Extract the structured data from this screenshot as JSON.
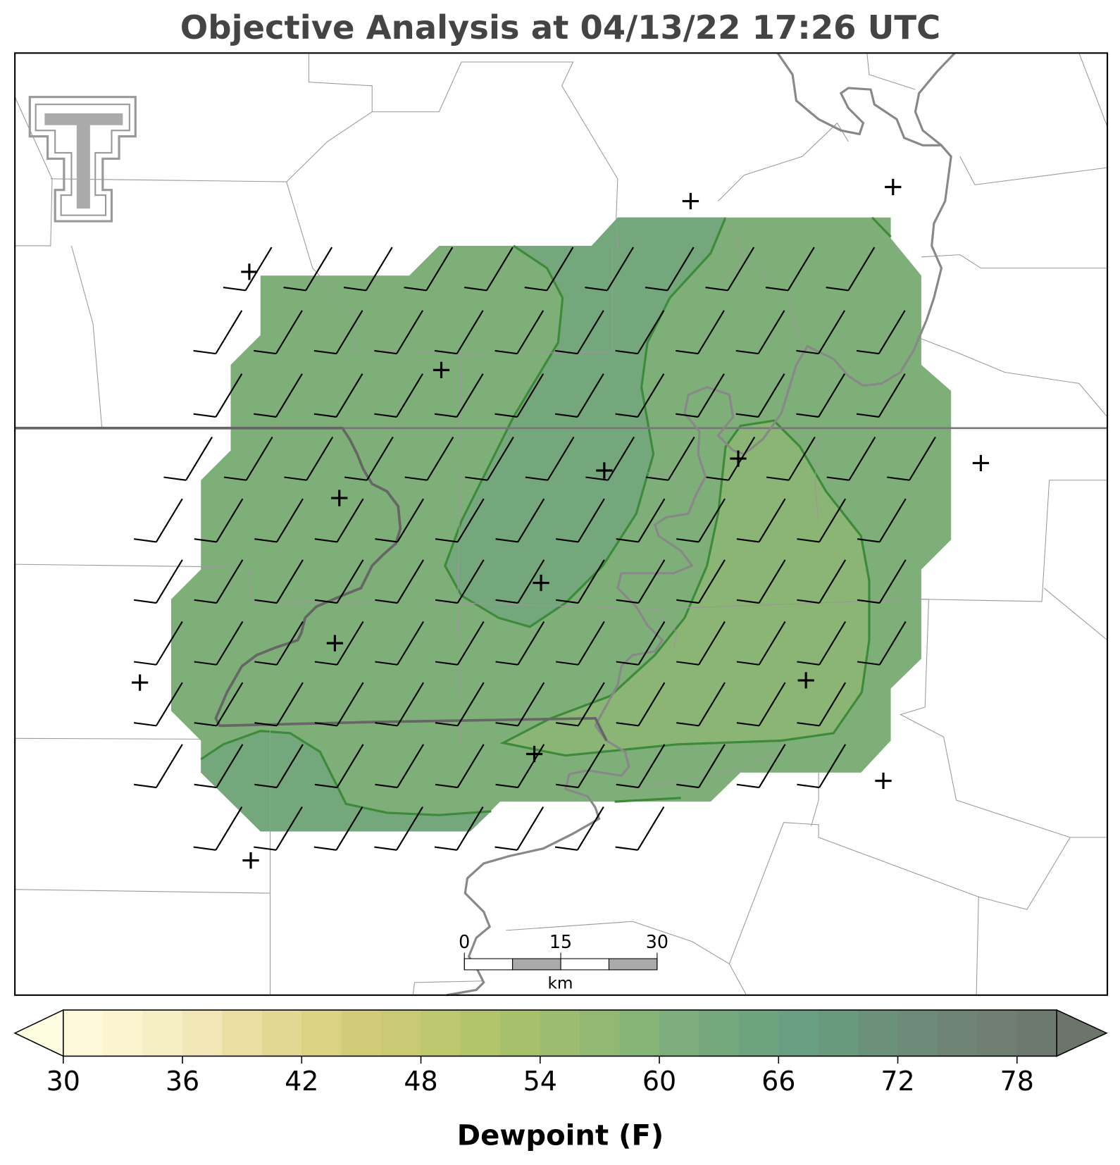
{
  "title": "Objective Analysis at 04/13/22 17:26 UTC",
  "scale_bar": {
    "lim": [
      0,
      30
    ],
    "ticks": [
      0,
      15,
      30
    ],
    "unit": "km"
  },
  "colorbar": {
    "label": "Dewpoint (F)",
    "lim": [
      30,
      80
    ],
    "ticks": [
      30,
      36,
      42,
      48,
      54,
      60,
      66,
      72,
      78
    ],
    "under_color": "#fefce0",
    "over_color": "#6c7569",
    "colors": [
      "#fdf9d8",
      "#fbf5cf",
      "#f6eec4",
      "#f1e7b6",
      "#ebdea3",
      "#e4d793",
      "#dcd283",
      "#d2cc79",
      "#c8cb74",
      "#bcc76e",
      "#b2c56b",
      "#a7c06b",
      "#9dbc6f",
      "#92b873",
      "#87b477",
      "#7eae7b",
      "#76a87d",
      "#6ea37f",
      "#699f82",
      "#6a9a7e",
      "#6c917b",
      "#6e8a78",
      "#6f8475",
      "#6f7f72",
      "#6d796e"
    ]
  }
}
